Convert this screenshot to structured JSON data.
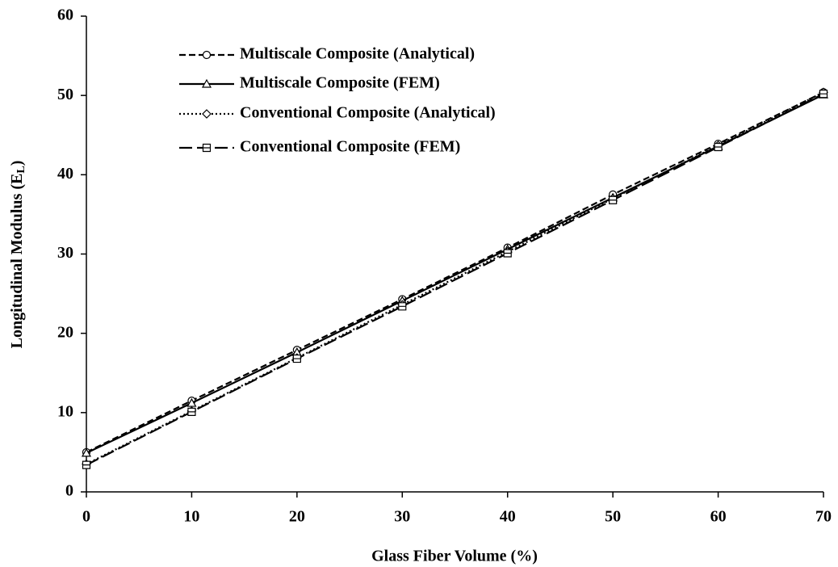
{
  "chart_data": {
    "type": "line",
    "xlabel": "Glass Fiber Volume (%)",
    "ylabel": [
      "Longitudinal Modulus (E",
      "L",
      ")"
    ],
    "x": [
      0,
      10,
      20,
      30,
      40,
      50,
      60,
      70
    ],
    "series": [
      {
        "name": "Multiscale Composite (Analytical)",
        "color": "#000000",
        "dash": "8,4",
        "marker": "circle",
        "values": [
          5.0,
          11.5,
          17.9,
          24.3,
          30.8,
          37.5,
          43.9,
          50.4
        ]
      },
      {
        "name": "Multiscale Composite (FEM)",
        "color": "#000000",
        "dash": "none",
        "marker": "triangle",
        "values": [
          4.9,
          11.2,
          17.6,
          24.1,
          30.6,
          37.1,
          43.6,
          50.1
        ]
      },
      {
        "name": "Conventional Composite (Analytical)",
        "color": "#000000",
        "dash": "2,3",
        "marker": "diamond",
        "values": [
          3.5,
          10.2,
          16.9,
          23.6,
          30.3,
          37.0,
          43.7,
          50.4
        ]
      },
      {
        "name": "Conventional Composite (FEM)",
        "color": "#000000",
        "dash": "16,6",
        "marker": "square",
        "values": [
          3.4,
          10.1,
          16.8,
          23.4,
          30.1,
          36.8,
          43.5,
          50.2
        ]
      }
    ],
    "xlim": [
      0,
      70
    ],
    "xticks": [
      0,
      10,
      20,
      30,
      40,
      50,
      60,
      70
    ],
    "ylim": [
      0,
      60
    ],
    "yticks": [
      0,
      10,
      20,
      30,
      40,
      50,
      60
    ],
    "grid": false,
    "legend": "upper left"
  }
}
